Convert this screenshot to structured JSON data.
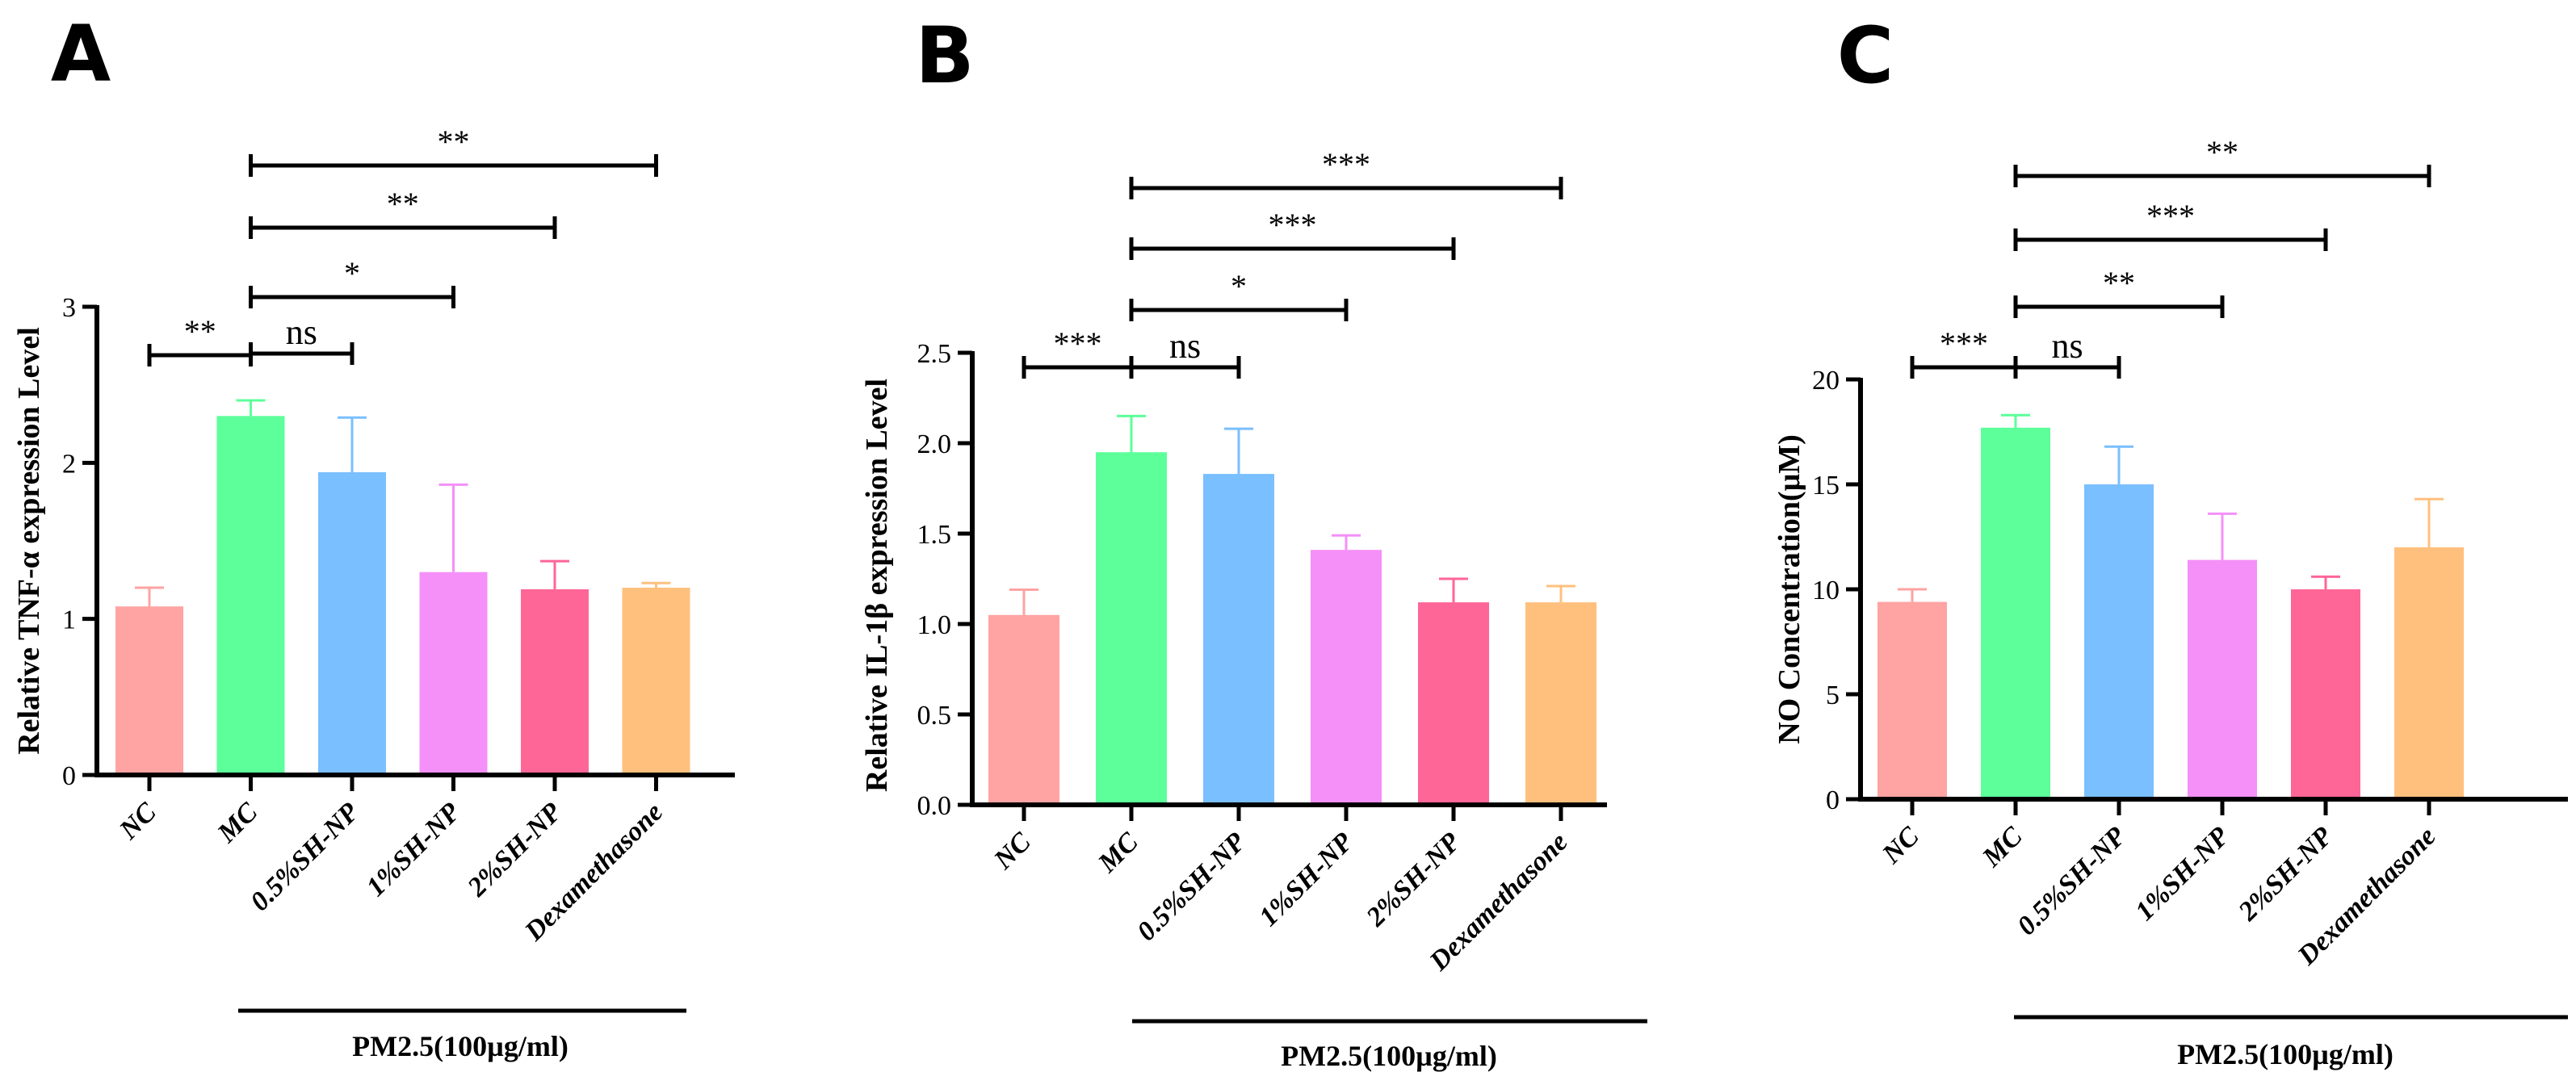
{
  "group_label": "PM2.5(100µg/ml)",
  "chart_data": [
    {
      "type": "bar",
      "panel": "A",
      "ylabel": "Relative TNF-α expression Level",
      "ylim": [
        0,
        3
      ],
      "yticks": [
        "0",
        "1",
        "2",
        "3"
      ],
      "categories": [
        "NC",
        "MC",
        "0.5%SH-NP",
        "1%SH-NP",
        "2%SH-NP",
        "Dexamethasone"
      ],
      "values": [
        1.08,
        2.3,
        1.94,
        1.3,
        1.19,
        1.2
      ],
      "errors": [
        0.12,
        0.1,
        0.35,
        0.56,
        0.18,
        0.03
      ],
      "colors": [
        "#FFA3A3",
        "#5CFF99",
        "#7ABFFF",
        "#F490F8",
        "#FF6698",
        "#FFC07E"
      ],
      "significance": [
        {
          "from": 0,
          "to": 1,
          "label": "**"
        },
        {
          "from": 1,
          "to": 2,
          "label": "ns"
        },
        {
          "from": 1,
          "to": 3,
          "label": "*"
        },
        {
          "from": 1,
          "to": 4,
          "label": "**"
        },
        {
          "from": 1,
          "to": 5,
          "label": "**"
        }
      ]
    },
    {
      "type": "bar",
      "panel": "B",
      "ylabel": "Relative IL-1β expression Level",
      "ylim": [
        0,
        2.5
      ],
      "yticks": [
        "0.0",
        "0.5",
        "1.0",
        "1.5",
        "2.0",
        "2.5"
      ],
      "categories": [
        "NC",
        "MC",
        "0.5%SH-NP",
        "1%SH-NP",
        "2%SH-NP",
        "Dexamethasone"
      ],
      "values": [
        1.05,
        1.95,
        1.83,
        1.41,
        1.12,
        1.12
      ],
      "errors": [
        0.14,
        0.2,
        0.25,
        0.08,
        0.13,
        0.09
      ],
      "colors": [
        "#FFA3A3",
        "#5CFF99",
        "#7ABFFF",
        "#F490F8",
        "#FF6698",
        "#FFC07E"
      ],
      "significance": [
        {
          "from": 0,
          "to": 1,
          "label": "***"
        },
        {
          "from": 1,
          "to": 2,
          "label": "ns"
        },
        {
          "from": 1,
          "to": 3,
          "label": "*"
        },
        {
          "from": 1,
          "to": 4,
          "label": "***"
        },
        {
          "from": 1,
          "to": 5,
          "label": "***"
        }
      ]
    },
    {
      "type": "bar",
      "panel": "C",
      "ylabel": "NO Concentration(μM)",
      "ylim": [
        0,
        20
      ],
      "yticks": [
        "0",
        "5",
        "10",
        "15",
        "20"
      ],
      "categories": [
        "NC",
        "MC",
        "0.5%SH-NP",
        "1%SH-NP",
        "2%SH-NP",
        "Dexamethasone"
      ],
      "values": [
        9.4,
        17.7,
        15.0,
        11.4,
        10.0,
        12.0
      ],
      "errors": [
        0.6,
        0.6,
        1.8,
        2.2,
        0.6,
        2.3
      ],
      "colors": [
        "#FFA3A3",
        "#5CFF99",
        "#7ABFFF",
        "#F490F8",
        "#FF6698",
        "#FFC07E"
      ],
      "significance": [
        {
          "from": 0,
          "to": 1,
          "label": "***"
        },
        {
          "from": 1,
          "to": 2,
          "label": "ns"
        },
        {
          "from": 1,
          "to": 3,
          "label": "**"
        },
        {
          "from": 1,
          "to": 4,
          "label": "***"
        },
        {
          "from": 1,
          "to": 5,
          "label": "**"
        }
      ]
    }
  ]
}
